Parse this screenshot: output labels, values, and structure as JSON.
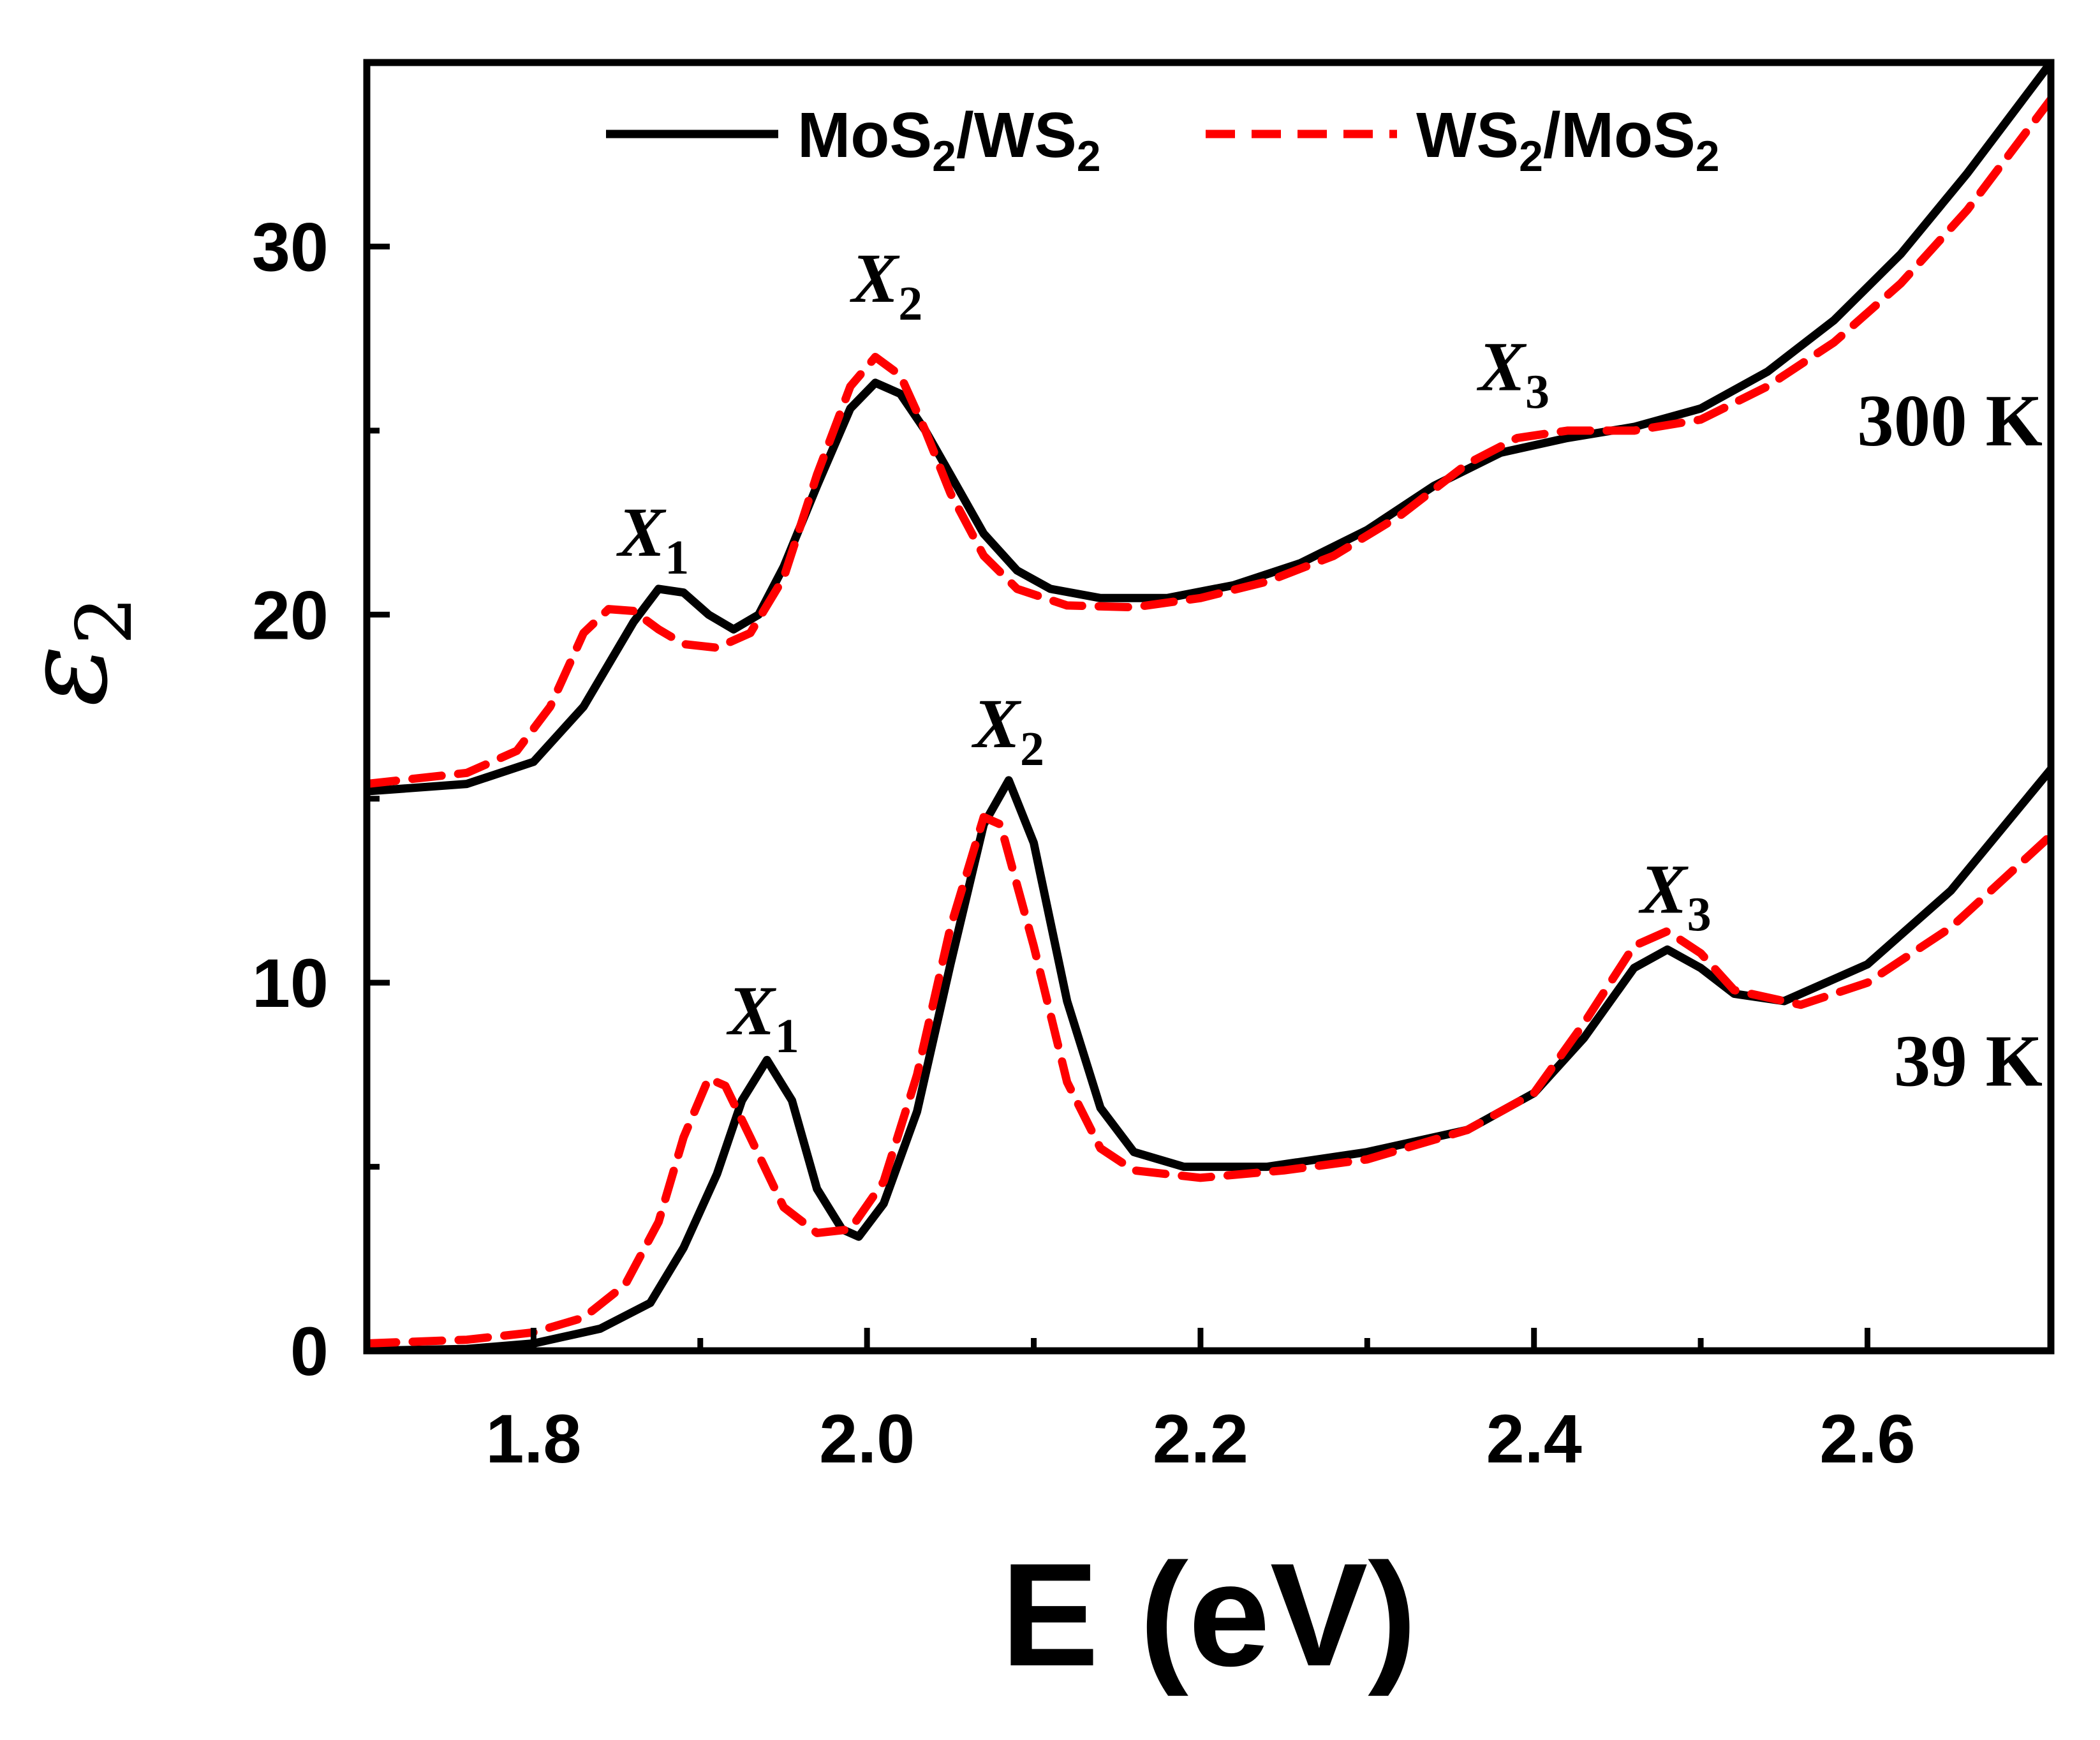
{
  "chart_data": {
    "type": "line",
    "title": "",
    "xlabel": "E (eV)",
    "ylabel_symbol": "ε",
    "ylabel_subscript": "2",
    "xlim": [
      1.7,
      2.71
    ],
    "ylim": [
      0,
      35.0
    ],
    "xticks": [
      1.8,
      2.0,
      2.2,
      2.4,
      2.6
    ],
    "xtick_labels": [
      "1.8",
      "2.0",
      "2.2",
      "2.4",
      "2.6"
    ],
    "yticks": [
      0,
      10,
      20,
      30
    ],
    "ytick_labels": [
      "0",
      "10",
      "20",
      "30"
    ],
    "grid": false,
    "legend_position": "top",
    "legend": [
      {
        "main": "MoS",
        "sub": "2",
        "rest": "/WS",
        "sub2": "2",
        "color": "#000000",
        "dash": "solid"
      },
      {
        "main": "WS",
        "sub": "2",
        "rest": "/MoS",
        "sub2": "2",
        "color": "#ff0000",
        "dash": "dashed"
      }
    ],
    "series": [
      {
        "name": "MoS2/WS2 (300 K)",
        "color": "#000000",
        "dash": "solid",
        "points": [
          [
            1.7,
            15.2
          ],
          [
            1.76,
            15.4
          ],
          [
            1.8,
            16.0
          ],
          [
            1.83,
            17.5
          ],
          [
            1.86,
            19.8
          ],
          [
            1.875,
            20.7
          ],
          [
            1.89,
            20.6
          ],
          [
            1.905,
            20.0
          ],
          [
            1.92,
            19.6
          ],
          [
            1.935,
            20.0
          ],
          [
            1.95,
            21.3
          ],
          [
            1.97,
            23.5
          ],
          [
            1.99,
            25.6
          ],
          [
            2.005,
            26.3
          ],
          [
            2.02,
            26.0
          ],
          [
            2.035,
            25.0
          ],
          [
            2.05,
            23.8
          ],
          [
            2.07,
            22.2
          ],
          [
            2.09,
            21.2
          ],
          [
            2.11,
            20.7
          ],
          [
            2.14,
            20.45
          ],
          [
            2.18,
            20.45
          ],
          [
            2.22,
            20.8
          ],
          [
            2.26,
            21.4
          ],
          [
            2.3,
            22.3
          ],
          [
            2.34,
            23.5
          ],
          [
            2.38,
            24.4
          ],
          [
            2.42,
            24.8
          ],
          [
            2.46,
            25.1
          ],
          [
            2.5,
            25.6
          ],
          [
            2.54,
            26.6
          ],
          [
            2.58,
            28.0
          ],
          [
            2.62,
            29.8
          ],
          [
            2.66,
            32.0
          ],
          [
            2.71,
            35.0
          ]
        ]
      },
      {
        "name": "WS2/MoS2 (300 K)",
        "color": "#ff0000",
        "dash": "dashed",
        "points": [
          [
            1.7,
            15.4
          ],
          [
            1.76,
            15.7
          ],
          [
            1.79,
            16.3
          ],
          [
            1.81,
            17.5
          ],
          [
            1.83,
            19.5
          ],
          [
            1.845,
            20.15
          ],
          [
            1.86,
            20.1
          ],
          [
            1.875,
            19.6
          ],
          [
            1.89,
            19.2
          ],
          [
            1.91,
            19.1
          ],
          [
            1.93,
            19.5
          ],
          [
            1.95,
            21.0
          ],
          [
            1.97,
            23.8
          ],
          [
            1.99,
            26.2
          ],
          [
            2.005,
            27.0
          ],
          [
            2.02,
            26.5
          ],
          [
            2.035,
            25.0
          ],
          [
            2.05,
            23.3
          ],
          [
            2.07,
            21.6
          ],
          [
            2.09,
            20.7
          ],
          [
            2.12,
            20.25
          ],
          [
            2.16,
            20.2
          ],
          [
            2.2,
            20.45
          ],
          [
            2.24,
            20.9
          ],
          [
            2.28,
            21.6
          ],
          [
            2.32,
            22.7
          ],
          [
            2.36,
            24.1
          ],
          [
            2.39,
            24.8
          ],
          [
            2.42,
            25.0
          ],
          [
            2.46,
            25.0
          ],
          [
            2.5,
            25.3
          ],
          [
            2.54,
            26.2
          ],
          [
            2.58,
            27.4
          ],
          [
            2.62,
            29.0
          ],
          [
            2.66,
            31.0
          ],
          [
            2.71,
            34.0
          ]
        ]
      },
      {
        "name": "MoS2/WS2 (39 K)",
        "color": "#000000",
        "dash": "solid",
        "points": [
          [
            1.7,
            0.0
          ],
          [
            1.76,
            0.05
          ],
          [
            1.8,
            0.2
          ],
          [
            1.84,
            0.6
          ],
          [
            1.87,
            1.3
          ],
          [
            1.89,
            2.8
          ],
          [
            1.91,
            4.8
          ],
          [
            1.925,
            6.8
          ],
          [
            1.94,
            7.9
          ],
          [
            1.955,
            6.8
          ],
          [
            1.97,
            4.4
          ],
          [
            1.985,
            3.3
          ],
          [
            1.995,
            3.1
          ],
          [
            2.01,
            4.0
          ],
          [
            2.03,
            6.5
          ],
          [
            2.05,
            10.5
          ],
          [
            2.07,
            14.3
          ],
          [
            2.085,
            15.5
          ],
          [
            2.1,
            13.8
          ],
          [
            2.12,
            9.5
          ],
          [
            2.14,
            6.6
          ],
          [
            2.16,
            5.4
          ],
          [
            2.19,
            5.0
          ],
          [
            2.24,
            5.0
          ],
          [
            2.3,
            5.4
          ],
          [
            2.36,
            6.0
          ],
          [
            2.4,
            7.0
          ],
          [
            2.43,
            8.5
          ],
          [
            2.46,
            10.4
          ],
          [
            2.48,
            10.9
          ],
          [
            2.5,
            10.4
          ],
          [
            2.52,
            9.7
          ],
          [
            2.55,
            9.5
          ],
          [
            2.6,
            10.5
          ],
          [
            2.65,
            12.5
          ],
          [
            2.71,
            15.8
          ]
        ]
      },
      {
        "name": "WS2/MoS2 (39 K)",
        "color": "#ff0000",
        "dash": "dashed",
        "points": [
          [
            1.7,
            0.2
          ],
          [
            1.76,
            0.3
          ],
          [
            1.8,
            0.5
          ],
          [
            1.83,
            0.9
          ],
          [
            1.855,
            1.8
          ],
          [
            1.875,
            3.5
          ],
          [
            1.89,
            5.8
          ],
          [
            1.905,
            7.4
          ],
          [
            1.915,
            7.2
          ],
          [
            1.93,
            5.8
          ],
          [
            1.95,
            3.9
          ],
          [
            1.97,
            3.2
          ],
          [
            1.99,
            3.3
          ],
          [
            2.01,
            4.6
          ],
          [
            2.03,
            7.5
          ],
          [
            2.05,
            11.5
          ],
          [
            2.07,
            14.5
          ],
          [
            2.08,
            14.3
          ],
          [
            2.1,
            11.0
          ],
          [
            2.12,
            7.3
          ],
          [
            2.14,
            5.5
          ],
          [
            2.16,
            4.9
          ],
          [
            2.2,
            4.7
          ],
          [
            2.25,
            4.9
          ],
          [
            2.3,
            5.2
          ],
          [
            2.36,
            6.0
          ],
          [
            2.4,
            7.0
          ],
          [
            2.43,
            8.9
          ],
          [
            2.46,
            11.0
          ],
          [
            2.48,
            11.4
          ],
          [
            2.5,
            10.8
          ],
          [
            2.52,
            9.8
          ],
          [
            2.56,
            9.4
          ],
          [
            2.6,
            10.0
          ],
          [
            2.65,
            11.5
          ],
          [
            2.71,
            14.0
          ]
        ]
      }
    ],
    "annotations": [
      {
        "label": "X",
        "sub": "1",
        "x": 1.872,
        "y": 21.6,
        "group": "300 K"
      },
      {
        "label": "X",
        "sub": "2",
        "x": 2.012,
        "y": 28.5,
        "group": "300 K"
      },
      {
        "label": "X",
        "sub": "3",
        "x": 2.388,
        "y": 26.1,
        "group": "300 K"
      },
      {
        "label": "X",
        "sub": "1",
        "x": 1.938,
        "y": 8.6,
        "group": "39 K"
      },
      {
        "label": "X",
        "sub": "2",
        "x": 2.085,
        "y": 16.4,
        "group": "39 K"
      },
      {
        "label": "X",
        "sub": "3",
        "x": 2.485,
        "y": 11.9,
        "group": "39 K"
      }
    ],
    "temperature_labels": [
      {
        "text": "300 K",
        "x": 2.705,
        "y": 24.6
      },
      {
        "text": "39 K",
        "x": 2.705,
        "y": 7.2
      }
    ]
  }
}
